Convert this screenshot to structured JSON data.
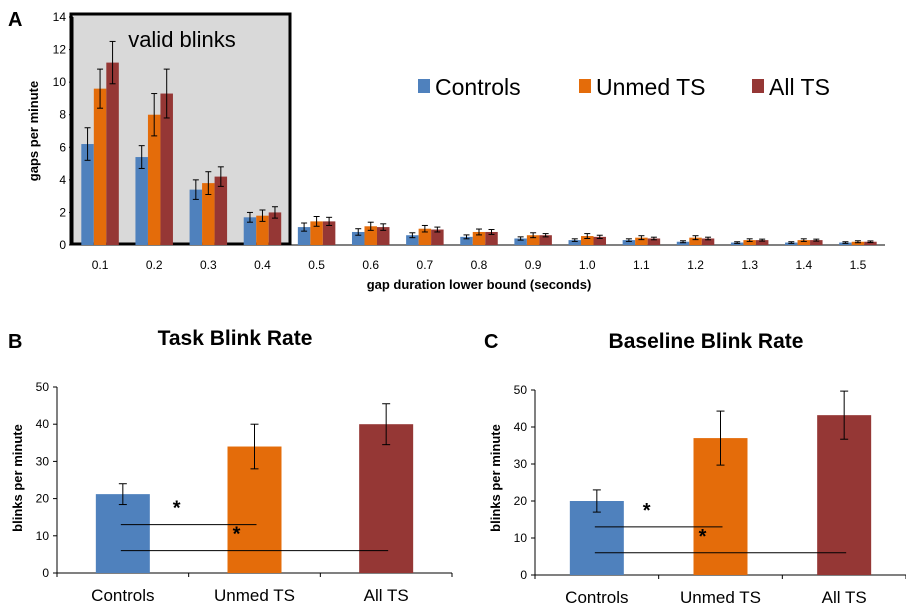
{
  "colors": {
    "controls": "#4f81bd",
    "unmed": "#e46c0a",
    "allts": "#953735",
    "highlight": "#d9d9d9"
  },
  "chart_data": [
    {
      "panel": "A",
      "type": "bar",
      "title": "",
      "xlabel": "gap duration lower bound (seconds)",
      "ylabel": "gaps per minute",
      "ylim": [
        0,
        14
      ],
      "yticks": [
        "0",
        "2",
        "4",
        "6",
        "8",
        "10",
        "12",
        "14"
      ],
      "categories": [
        "0.1",
        "0.2",
        "0.3",
        "0.4",
        "0.5",
        "0.6",
        "0.7",
        "0.8",
        "0.9",
        "1.0",
        "1.1",
        "1.2",
        "1.3",
        "1.4",
        "1.5"
      ],
      "inset_label": "valid blinks",
      "legend": [
        "Controls",
        "Unmed TS",
        "All TS"
      ],
      "legend_position": "top-right",
      "series": [
        {
          "name": "Controls",
          "values": [
            6.2,
            5.4,
            3.4,
            1.7,
            1.1,
            0.8,
            0.6,
            0.5,
            0.4,
            0.3,
            0.3,
            0.2,
            0.15,
            0.15,
            0.15
          ],
          "errors": [
            1.0,
            0.7,
            0.6,
            0.3,
            0.25,
            0.2,
            0.15,
            0.12,
            0.1,
            0.08,
            0.08,
            0.06,
            0.05,
            0.05,
            0.05
          ]
        },
        {
          "name": "Unmed TS",
          "values": [
            9.6,
            8.0,
            3.8,
            1.8,
            1.45,
            1.15,
            1.0,
            0.8,
            0.6,
            0.55,
            0.45,
            0.45,
            0.3,
            0.3,
            0.2
          ],
          "errors": [
            1.2,
            1.3,
            0.7,
            0.35,
            0.3,
            0.25,
            0.2,
            0.18,
            0.15,
            0.15,
            0.12,
            0.12,
            0.08,
            0.08,
            0.06
          ]
        },
        {
          "name": "All TS",
          "values": [
            11.2,
            9.3,
            4.2,
            2.0,
            1.45,
            1.1,
            0.95,
            0.8,
            0.6,
            0.5,
            0.4,
            0.4,
            0.3,
            0.3,
            0.2
          ],
          "errors": [
            1.3,
            1.5,
            0.6,
            0.35,
            0.25,
            0.2,
            0.15,
            0.15,
            0.1,
            0.1,
            0.08,
            0.08,
            0.06,
            0.06,
            0.05
          ]
        }
      ]
    },
    {
      "panel": "B",
      "type": "bar",
      "title": "Task Blink Rate",
      "xlabel": "",
      "ylabel": "blinks per minute",
      "ylim": [
        0,
        50
      ],
      "yticks": [
        "0",
        "10",
        "20",
        "30",
        "40",
        "50"
      ],
      "categories": [
        "Controls",
        "Unmed TS",
        "All TS"
      ],
      "values": [
        21.2,
        34.0,
        40.0
      ],
      "errors": [
        2.8,
        6.0,
        5.5
      ],
      "significance": [
        {
          "from": "Controls",
          "to": "Unmed TS",
          "y": 13,
          "label": "*"
        },
        {
          "from": "Controls",
          "to": "All TS",
          "y": 6,
          "label": "*"
        }
      ]
    },
    {
      "panel": "C",
      "type": "bar",
      "title": "Baseline Blink Rate",
      "xlabel": "",
      "ylabel": "blinks per minute",
      "ylim": [
        0,
        50
      ],
      "yticks": [
        "0",
        "10",
        "20",
        "30",
        "40",
        "50"
      ],
      "categories": [
        "Controls",
        "Unmed TS",
        "All TS"
      ],
      "values": [
        20.0,
        37.0,
        43.2
      ],
      "errors": [
        3.0,
        7.3,
        6.5
      ],
      "significance": [
        {
          "from": "Controls",
          "to": "Unmed TS",
          "y": 13,
          "label": "*"
        },
        {
          "from": "Controls",
          "to": "All TS",
          "y": 6,
          "label": "*"
        }
      ]
    }
  ]
}
